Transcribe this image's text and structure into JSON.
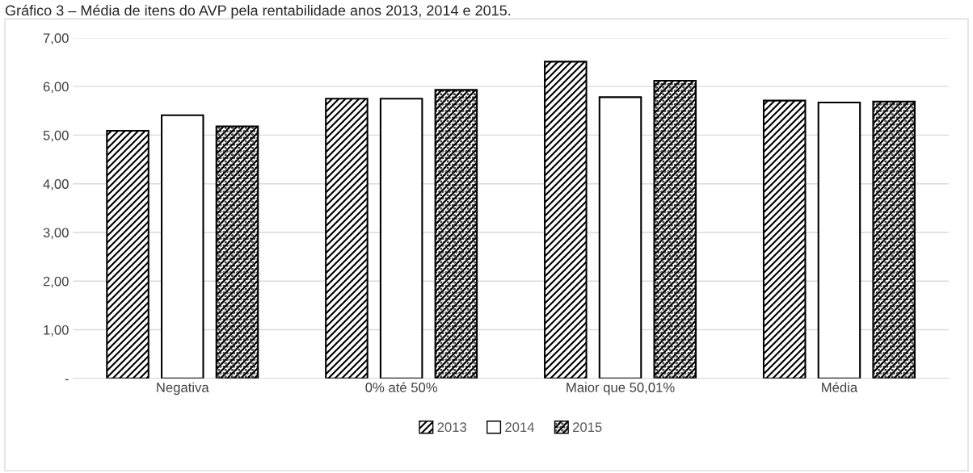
{
  "chart_data": {
    "type": "bar",
    "title": "Gráfico 3 – Média de itens do AVP pela rentabilidade anos 2013, 2014 e 2015.",
    "categories": [
      "Negativa",
      "0% até 50%",
      "Maior que 50,01%",
      "Média"
    ],
    "series": [
      {
        "name": "2013",
        "color": "#000000",
        "values": [
          5.09,
          5.75,
          6.51,
          5.71
        ]
      },
      {
        "name": "2014",
        "color": "#000000",
        "values": [
          5.41,
          5.75,
          5.78,
          5.67
        ]
      },
      {
        "name": "2015",
        "color": "#000000",
        "values": [
          5.18,
          5.93,
          6.12,
          5.69
        ]
      }
    ],
    "ylim": [
      0,
      7
    ],
    "yticks": [
      {
        "value": 0,
        "label": "-"
      },
      {
        "value": 1,
        "label": "1,00"
      },
      {
        "value": 2,
        "label": "2,00"
      },
      {
        "value": 3,
        "label": "3,00"
      },
      {
        "value": 4,
        "label": "4,00"
      },
      {
        "value": 5,
        "label": "5,00"
      },
      {
        "value": 6,
        "label": "6,00"
      },
      {
        "value": 7,
        "label": "7,00"
      }
    ],
    "grid": "y",
    "legend": "bottom"
  }
}
